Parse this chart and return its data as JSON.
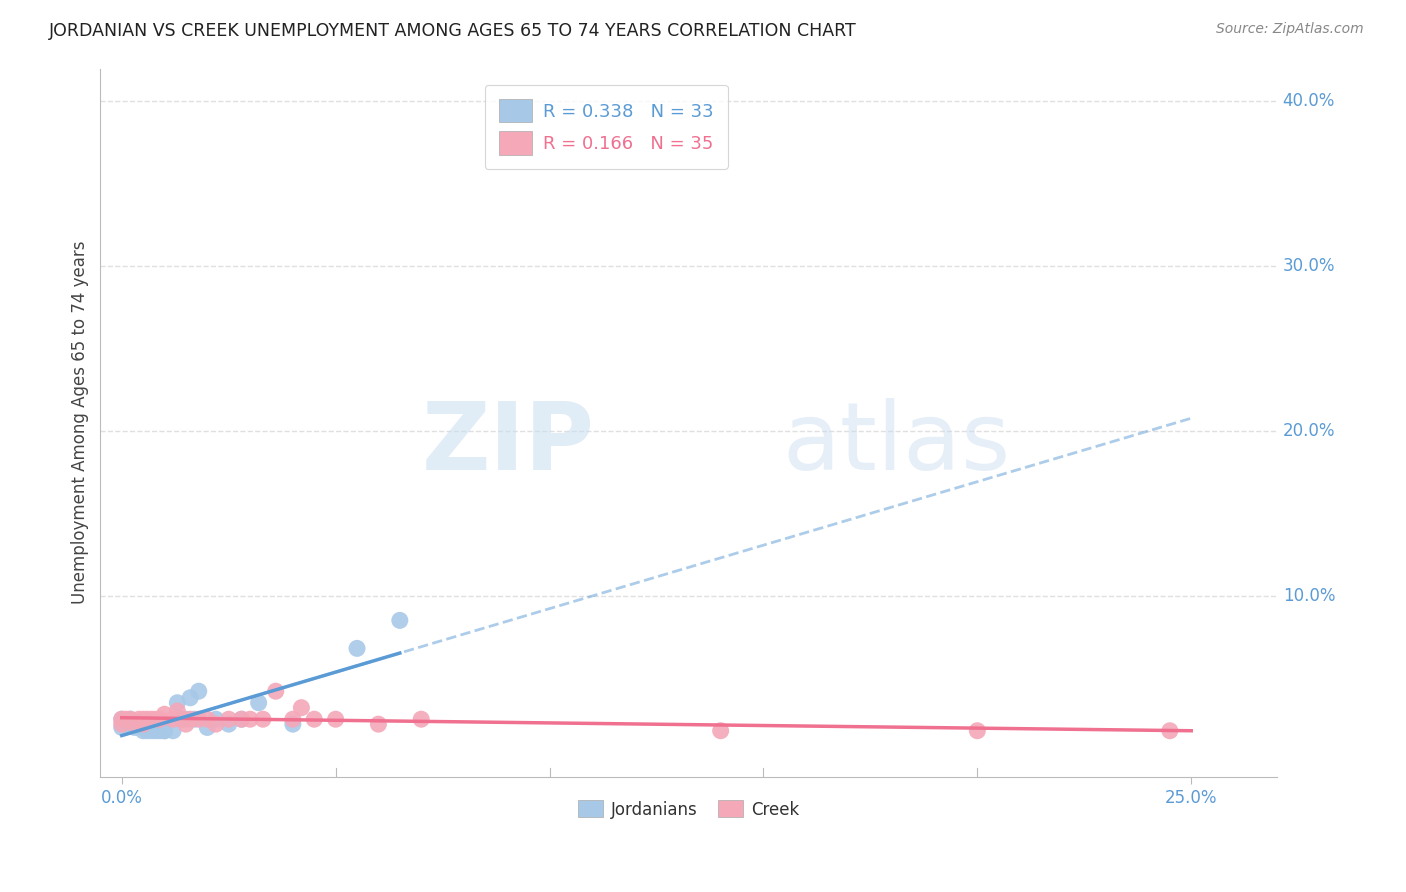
{
  "title": "JORDANIAN VS CREEK UNEMPLOYMENT AMONG AGES 65 TO 74 YEARS CORRELATION CHART",
  "source": "Source: ZipAtlas.com",
  "ylabel_label": "Unemployment Among Ages 65 to 74 years",
  "jordanian_color": "#a8c8e8",
  "creek_color": "#f4a8b8",
  "jordanian_line_color": "#5b9bd5",
  "creek_line_color": "#f07090",
  "R_jordanian": 0.338,
  "N_jordanian": 33,
  "R_creek": 0.166,
  "N_creek": 35,
  "jordanian_scatter_x": [
    0.0,
    0.0,
    0.002,
    0.002,
    0.003,
    0.003,
    0.004,
    0.005,
    0.005,
    0.006,
    0.006,
    0.007,
    0.008,
    0.008,
    0.009,
    0.009,
    0.01,
    0.01,
    0.012,
    0.013,
    0.014,
    0.015,
    0.016,
    0.017,
    0.018,
    0.02,
    0.022,
    0.025,
    0.028,
    0.032,
    0.04,
    0.055,
    0.065
  ],
  "jordanian_scatter_y": [
    0.025,
    0.02,
    0.025,
    0.022,
    0.022,
    0.02,
    0.022,
    0.02,
    0.018,
    0.018,
    0.022,
    0.018,
    0.018,
    0.02,
    0.02,
    0.018,
    0.018,
    0.018,
    0.018,
    0.035,
    0.025,
    0.025,
    0.038,
    0.025,
    0.042,
    0.02,
    0.025,
    0.022,
    0.025,
    0.035,
    0.022,
    0.068,
    0.085
  ],
  "creek_scatter_x": [
    0.0,
    0.0,
    0.001,
    0.002,
    0.003,
    0.004,
    0.005,
    0.005,
    0.006,
    0.007,
    0.008,
    0.009,
    0.01,
    0.012,
    0.013,
    0.014,
    0.015,
    0.016,
    0.018,
    0.02,
    0.022,
    0.025,
    0.028,
    0.03,
    0.033,
    0.036,
    0.04,
    0.042,
    0.045,
    0.05,
    0.06,
    0.07,
    0.14,
    0.2,
    0.245
  ],
  "creek_scatter_y": [
    0.025,
    0.022,
    0.025,
    0.025,
    0.022,
    0.025,
    0.025,
    0.022,
    0.025,
    0.025,
    0.025,
    0.025,
    0.028,
    0.025,
    0.03,
    0.025,
    0.022,
    0.025,
    0.025,
    0.025,
    0.022,
    0.025,
    0.025,
    0.025,
    0.025,
    0.042,
    0.025,
    0.032,
    0.025,
    0.025,
    0.022,
    0.025,
    0.018,
    0.018,
    0.018
  ],
  "xlim": [
    -0.005,
    0.27
  ],
  "ylim": [
    -0.01,
    0.42
  ],
  "watermark_zip": "ZIP",
  "watermark_atlas": "atlas",
  "background_color": "#ffffff",
  "grid_color": "#e0e0e0",
  "tick_color": "#5b9bd5",
  "ytick_vals": [
    0.1,
    0.2,
    0.3,
    0.4
  ]
}
